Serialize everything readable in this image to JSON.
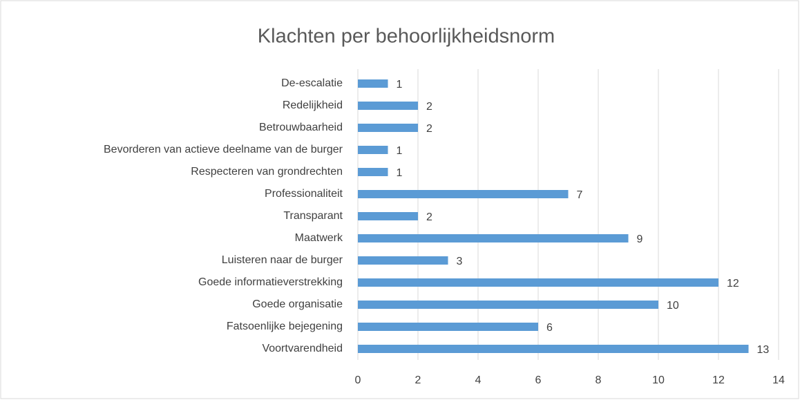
{
  "chart_data": {
    "type": "bar",
    "orientation": "horizontal",
    "title": "Klachten per behoorlijkheidsnorm",
    "categories": [
      "De-escalatie",
      "Redelijkheid",
      "Betrouwbaarheid",
      "Bevorderen van actieve deelname van de burger",
      "Respecteren van grondrechten",
      "Professionaliteit",
      "Transparant",
      "Maatwerk",
      "Luisteren naar de burger",
      "Goede informatieverstrekking",
      "Goede organisatie",
      "Fatsoenlijke bejegening",
      "Voortvarendheid"
    ],
    "values": [
      1,
      2,
      2,
      1,
      1,
      7,
      2,
      9,
      3,
      12,
      10,
      6,
      13
    ],
    "color": "#5b9bd5",
    "xlim": [
      0,
      14
    ],
    "xticks": [
      0,
      2,
      4,
      6,
      8,
      10,
      12,
      14
    ],
    "grid": true
  }
}
